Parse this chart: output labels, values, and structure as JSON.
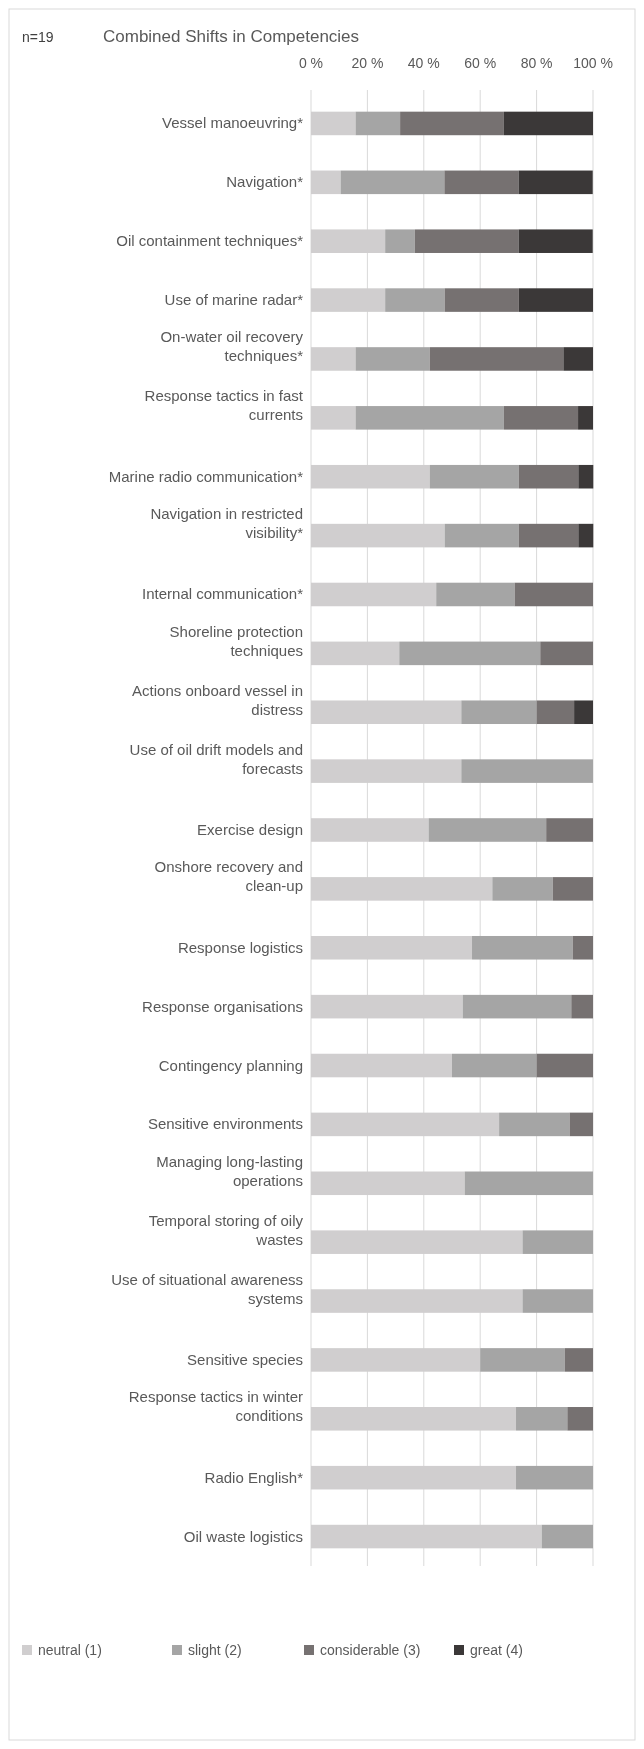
{
  "chart_data": {
    "type": "bar",
    "orientation": "horizontal",
    "stacked": true,
    "title": "Combined Shifts in Competencies",
    "annotations": [
      "n=19"
    ],
    "categories": [
      "Vessel manoeuvring*",
      "Navigation*",
      "Oil containment techniques*",
      "Use of marine radar*",
      "On-water oil recovery techniques*",
      "Response tactics in fast currents",
      "Marine radio communication*",
      "Navigation in restricted visibility*",
      "Internal communication*",
      "Shoreline protection techniques",
      "Actions onboard vessel in distress",
      "Use of oil drift models and forecasts",
      "Exercise design",
      "Onshore recovery and clean-up",
      "Response logistics",
      "Response organisations",
      "Contingency planning",
      "Sensitive environments",
      "Managing long-lasting operations",
      "Temporal storing of oily wastes",
      "Use of situational awareness systems",
      "Sensitive species",
      "Response tactics in winter conditions",
      "Radio English*",
      "Oil waste logistics"
    ],
    "series": [
      {
        "name": "neutral (1)",
        "color": "#d0cecf",
        "values": [
          15.8,
          10.5,
          26.3,
          26.3,
          15.8,
          15.8,
          42.1,
          47.4,
          44.4,
          31.3,
          53.3,
          53.3,
          41.7,
          64.3,
          57.1,
          53.8,
          50,
          66.7,
          54.5,
          75,
          75,
          60,
          72.7,
          72.7,
          81.8
        ]
      },
      {
        "name": "slight (2)",
        "color": "#a5a5a5",
        "values": [
          15.8,
          36.8,
          10.5,
          21.1,
          26.3,
          52.6,
          31.6,
          26.3,
          27.8,
          50,
          26.7,
          46.7,
          41.7,
          21.4,
          35.7,
          38.5,
          30,
          25,
          45.5,
          25,
          25,
          30,
          18.2,
          27.3,
          18.2
        ]
      },
      {
        "name": "considerable (3)",
        "color": "#767171",
        "values": [
          36.8,
          26.3,
          36.8,
          26.3,
          47.4,
          26.3,
          21.1,
          21.1,
          27.8,
          18.7,
          13.3,
          0,
          16.6,
          14.3,
          7.2,
          7.7,
          20,
          8.3,
          0,
          0,
          0,
          10,
          9.1,
          0,
          0
        ]
      },
      {
        "name": "great (4)",
        "color": "#3b3838",
        "values": [
          31.6,
          26.3,
          26.3,
          26.3,
          10.5,
          5.3,
          5.3,
          5.3,
          0,
          0,
          6.7,
          0,
          0,
          0,
          0,
          0,
          0,
          0,
          0,
          0,
          0,
          0,
          0,
          0,
          0
        ]
      }
    ],
    "xlim": [
      0,
      100
    ],
    "xticks": [
      {
        "value": 0,
        "label": "0 %"
      },
      {
        "value": 20,
        "label": "20 %"
      },
      {
        "value": 40,
        "label": "40 %"
      },
      {
        "value": 60,
        "label": "60 %"
      },
      {
        "value": 80,
        "label": "80 %"
      },
      {
        "value": 100,
        "label": "100 %"
      }
    ],
    "grid": "x",
    "legend": "bottom"
  }
}
